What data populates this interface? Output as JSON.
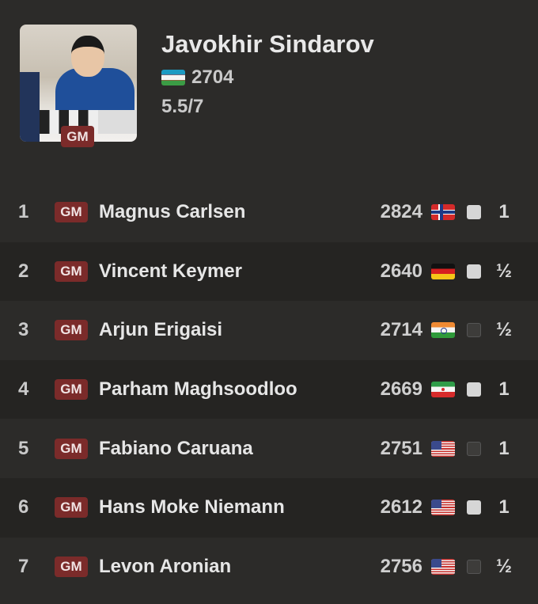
{
  "player": {
    "name": "Javokhir Sindarov",
    "title": "GM",
    "flag": "uzbekistan",
    "rating": "2704",
    "score": "5.5/7"
  },
  "colors": {
    "gm_badge": "#7b2b2a",
    "background": "#2c2b29",
    "alt_row": "#252422"
  },
  "games": [
    {
      "round": "1",
      "title": "GM",
      "opponent": "Magnus Carlsen",
      "rating": "2824",
      "flag": "no",
      "piece": "white",
      "result": "1"
    },
    {
      "round": "2",
      "title": "GM",
      "opponent": "Vincent Keymer",
      "rating": "2640",
      "flag": "de",
      "piece": "white",
      "result": "½"
    },
    {
      "round": "3",
      "title": "GM",
      "opponent": "Arjun Erigaisi",
      "rating": "2714",
      "flag": "in",
      "piece": "black",
      "result": "½"
    },
    {
      "round": "4",
      "title": "GM",
      "opponent": "Parham Maghsoodloo",
      "rating": "2669",
      "flag": "ir",
      "piece": "white",
      "result": "1"
    },
    {
      "round": "5",
      "title": "GM",
      "opponent": "Fabiano Caruana",
      "rating": "2751",
      "flag": "us",
      "piece": "black",
      "result": "1"
    },
    {
      "round": "6",
      "title": "GM",
      "opponent": "Hans Moke Niemann",
      "rating": "2612",
      "flag": "us",
      "piece": "white",
      "result": "1"
    },
    {
      "round": "7",
      "title": "GM",
      "opponent": "Levon Aronian",
      "rating": "2756",
      "flag": "us",
      "piece": "black",
      "result": "½"
    }
  ]
}
